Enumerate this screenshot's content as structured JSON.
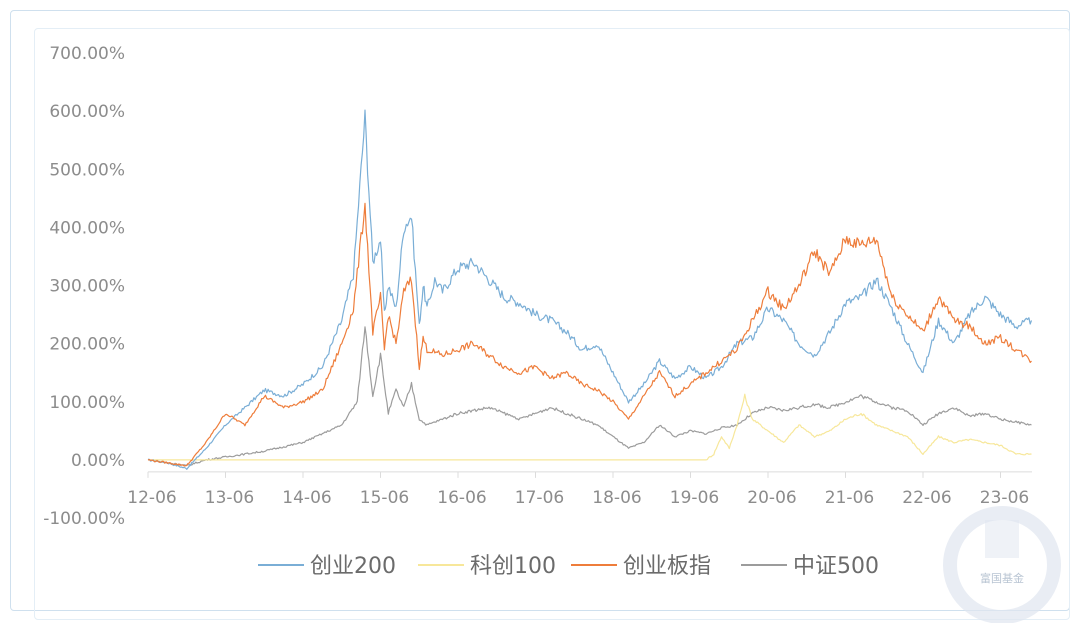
{
  "chart_data": {
    "type": "line",
    "title": "",
    "xlabel": "",
    "ylabel": "",
    "ylim": [
      -100,
      700
    ],
    "y_ticks": [
      "700.00%",
      "600.00%",
      "500.00%",
      "400.00%",
      "300.00%",
      "200.00%",
      "100.00%",
      "0.00%",
      "-100.00%"
    ],
    "y_tick_values": [
      700,
      600,
      500,
      400,
      300,
      200,
      100,
      0,
      -100
    ],
    "x_ticks": [
      "12-06",
      "13-06",
      "14-06",
      "15-06",
      "16-06",
      "17-06",
      "18-06",
      "19-06",
      "20-06",
      "21-06",
      "22-06",
      "23-06"
    ],
    "x_range": [
      0,
      11.45
    ],
    "legend_position": "bottom",
    "series": [
      {
        "name": "创业200",
        "color": "#7aaed6",
        "x": [
          0,
          0.25,
          0.5,
          0.75,
          1.0,
          1.25,
          1.5,
          1.75,
          2.0,
          2.25,
          2.5,
          2.65,
          2.8,
          2.9,
          3.0,
          3.05,
          3.1,
          3.2,
          3.3,
          3.4,
          3.5,
          3.55,
          3.6,
          3.7,
          3.8,
          4.0,
          4.2,
          4.4,
          4.6,
          4.8,
          5.0,
          5.2,
          5.4,
          5.6,
          5.8,
          6.0,
          6.2,
          6.4,
          6.6,
          6.8,
          7.0,
          7.2,
          7.4,
          7.6,
          7.8,
          8.0,
          8.2,
          8.4,
          8.6,
          8.8,
          9.0,
          9.2,
          9.4,
          9.6,
          9.8,
          10.0,
          10.2,
          10.4,
          10.6,
          10.8,
          11.0,
          11.2,
          11.4
        ],
        "values": [
          0,
          -5,
          -15,
          20,
          60,
          90,
          120,
          110,
          130,
          160,
          240,
          320,
          590,
          340,
          380,
          250,
          300,
          260,
          400,
          420,
          230,
          300,
          260,
          310,
          290,
          330,
          340,
          310,
          280,
          270,
          250,
          240,
          220,
          190,
          200,
          150,
          100,
          130,
          170,
          140,
          160,
          140,
          160,
          200,
          210,
          260,
          240,
          200,
          180,
          220,
          270,
          280,
          310,
          260,
          200,
          150,
          240,
          200,
          250,
          280,
          250,
          230,
          240
        ]
      },
      {
        "name": "科创100",
        "color": "#f7e79a",
        "x": [
          0,
          7.2,
          7.3,
          7.4,
          7.5,
          7.6,
          7.7,
          7.8,
          8.0,
          8.2,
          8.4,
          8.6,
          8.8,
          9.0,
          9.2,
          9.4,
          9.6,
          9.8,
          10.0,
          10.2,
          10.4,
          10.6,
          10.8,
          11.0,
          11.2,
          11.4
        ],
        "values": [
          0,
          0,
          10,
          40,
          20,
          60,
          110,
          70,
          50,
          30,
          60,
          40,
          50,
          70,
          80,
          60,
          50,
          40,
          10,
          40,
          30,
          35,
          30,
          25,
          10,
          10
        ]
      },
      {
        "name": "创业板指",
        "color": "#ee7d3b",
        "x": [
          0,
          0.25,
          0.5,
          0.75,
          1.0,
          1.25,
          1.5,
          1.75,
          2.0,
          2.25,
          2.5,
          2.65,
          2.8,
          2.9,
          3.0,
          3.05,
          3.1,
          3.2,
          3.3,
          3.4,
          3.5,
          3.55,
          3.6,
          3.8,
          4.0,
          4.2,
          4.4,
          4.6,
          4.8,
          5.0,
          5.2,
          5.4,
          5.6,
          5.8,
          6.0,
          6.2,
          6.4,
          6.6,
          6.8,
          7.0,
          7.2,
          7.4,
          7.6,
          7.8,
          8.0,
          8.2,
          8.4,
          8.6,
          8.8,
          9.0,
          9.2,
          9.4,
          9.6,
          9.8,
          10.0,
          10.2,
          10.4,
          10.6,
          10.8,
          11.0,
          11.2,
          11.4
        ],
        "values": [
          0,
          -5,
          -10,
          30,
          80,
          60,
          110,
          90,
          100,
          120,
          200,
          260,
          440,
          220,
          280,
          190,
          250,
          200,
          290,
          310,
          160,
          210,
          190,
          180,
          190,
          200,
          180,
          160,
          150,
          160,
          140,
          150,
          130,
          120,
          100,
          70,
          110,
          150,
          110,
          130,
          150,
          170,
          190,
          240,
          290,
          260,
          300,
          360,
          320,
          380,
          370,
          380,
          280,
          250,
          220,
          280,
          240,
          230,
          200,
          210,
          190,
          170
        ]
      },
      {
        "name": "中证500",
        "color": "#9c9c9c",
        "x": [
          0,
          0.25,
          0.5,
          0.75,
          1.0,
          1.5,
          2.0,
          2.5,
          2.7,
          2.8,
          2.9,
          3.0,
          3.1,
          3.2,
          3.3,
          3.4,
          3.5,
          3.6,
          3.8,
          4.0,
          4.2,
          4.4,
          4.6,
          4.8,
          5.0,
          5.2,
          5.4,
          5.6,
          5.8,
          6.0,
          6.2,
          6.4,
          6.6,
          6.8,
          7.0,
          7.2,
          7.4,
          7.6,
          7.8,
          8.0,
          8.2,
          8.4,
          8.6,
          8.8,
          9.0,
          9.2,
          9.4,
          9.6,
          9.8,
          10.0,
          10.2,
          10.4,
          10.6,
          10.8,
          11.0,
          11.2,
          11.4
        ],
        "values": [
          0,
          -5,
          -10,
          0,
          5,
          15,
          30,
          60,
          100,
          230,
          110,
          180,
          80,
          120,
          90,
          130,
          70,
          60,
          70,
          80,
          85,
          90,
          80,
          70,
          80,
          90,
          80,
          70,
          60,
          40,
          20,
          30,
          60,
          40,
          50,
          45,
          55,
          60,
          80,
          90,
          85,
          90,
          95,
          90,
          100,
          110,
          100,
          90,
          85,
          60,
          80,
          90,
          75,
          80,
          70,
          65,
          60
        ]
      }
    ]
  },
  "watermark": {
    "text": "富国基金",
    "color": "#dfe6f0"
  }
}
